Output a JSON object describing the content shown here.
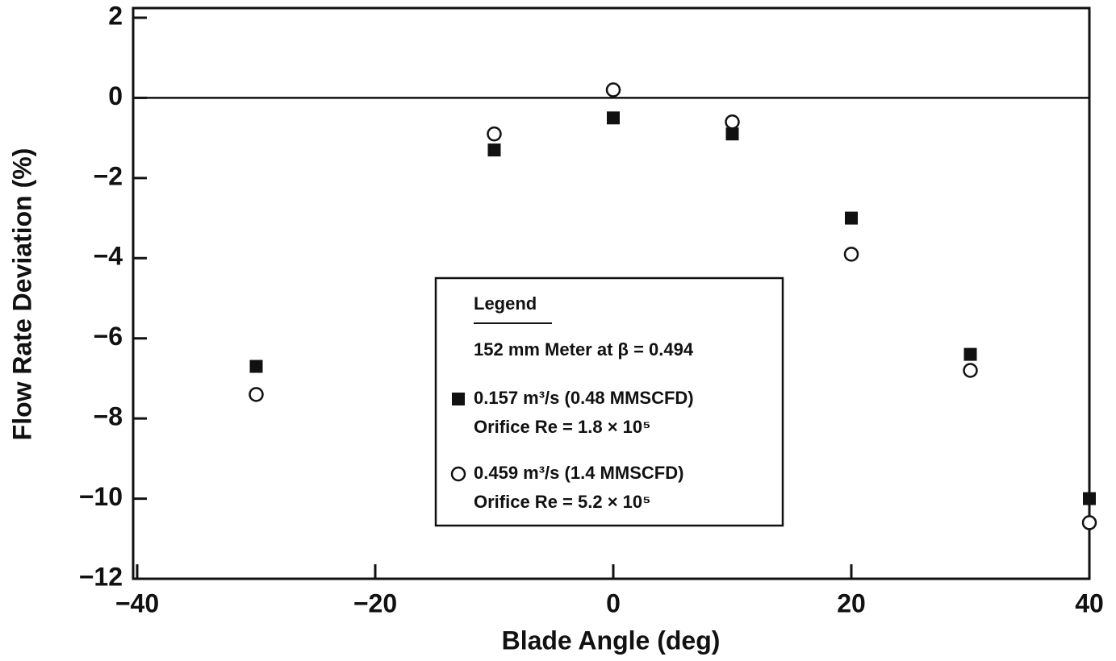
{
  "chart_data": {
    "type": "scatter",
    "x_label": "Blade Angle (deg)",
    "y_label": "Flow Rate Deviation (%)",
    "xlim": [
      -40,
      40
    ],
    "ylim": [
      -12,
      2
    ],
    "xticks": [
      {
        "value": -40,
        "label": "−40"
      },
      {
        "value": -20,
        "label": "−20"
      },
      0,
      20,
      40
    ],
    "yticks": [
      2,
      0,
      {
        "value": -2,
        "label": "−2"
      },
      {
        "value": -4,
        "label": "−4"
      },
      {
        "value": -6,
        "label": "−6"
      },
      {
        "value": -8,
        "label": "−8"
      },
      {
        "value": -10,
        "label": "−10"
      },
      {
        "value": -12,
        "label": "−12"
      }
    ],
    "hline": 0,
    "legend": {
      "title": "Legend",
      "subtitle": "152 mm Meter at β = 0.494"
    },
    "series": [
      {
        "name": "0.157 m³/s (0.48 MMSCFD)",
        "detail": "Orifice Re = 1.8 × 10⁵",
        "marker": "square",
        "color": "#111111",
        "x": [
          -30,
          -10,
          0,
          10,
          20,
          30,
          40
        ],
        "values": [
          -6.7,
          -1.3,
          -0.5,
          -0.9,
          -3.0,
          -6.4,
          -10.0
        ]
      },
      {
        "name": "0.459 m³/s (1.4 MMSCFD)",
        "detail": "Orifice Re = 5.2 × 10⁵",
        "marker": "circle",
        "color": "#111111",
        "x": [
          -30,
          -10,
          0,
          10,
          20,
          30,
          40
        ],
        "values": [
          -7.4,
          -0.9,
          0.2,
          -0.6,
          -3.9,
          -6.8,
          -10.6
        ]
      }
    ]
  }
}
